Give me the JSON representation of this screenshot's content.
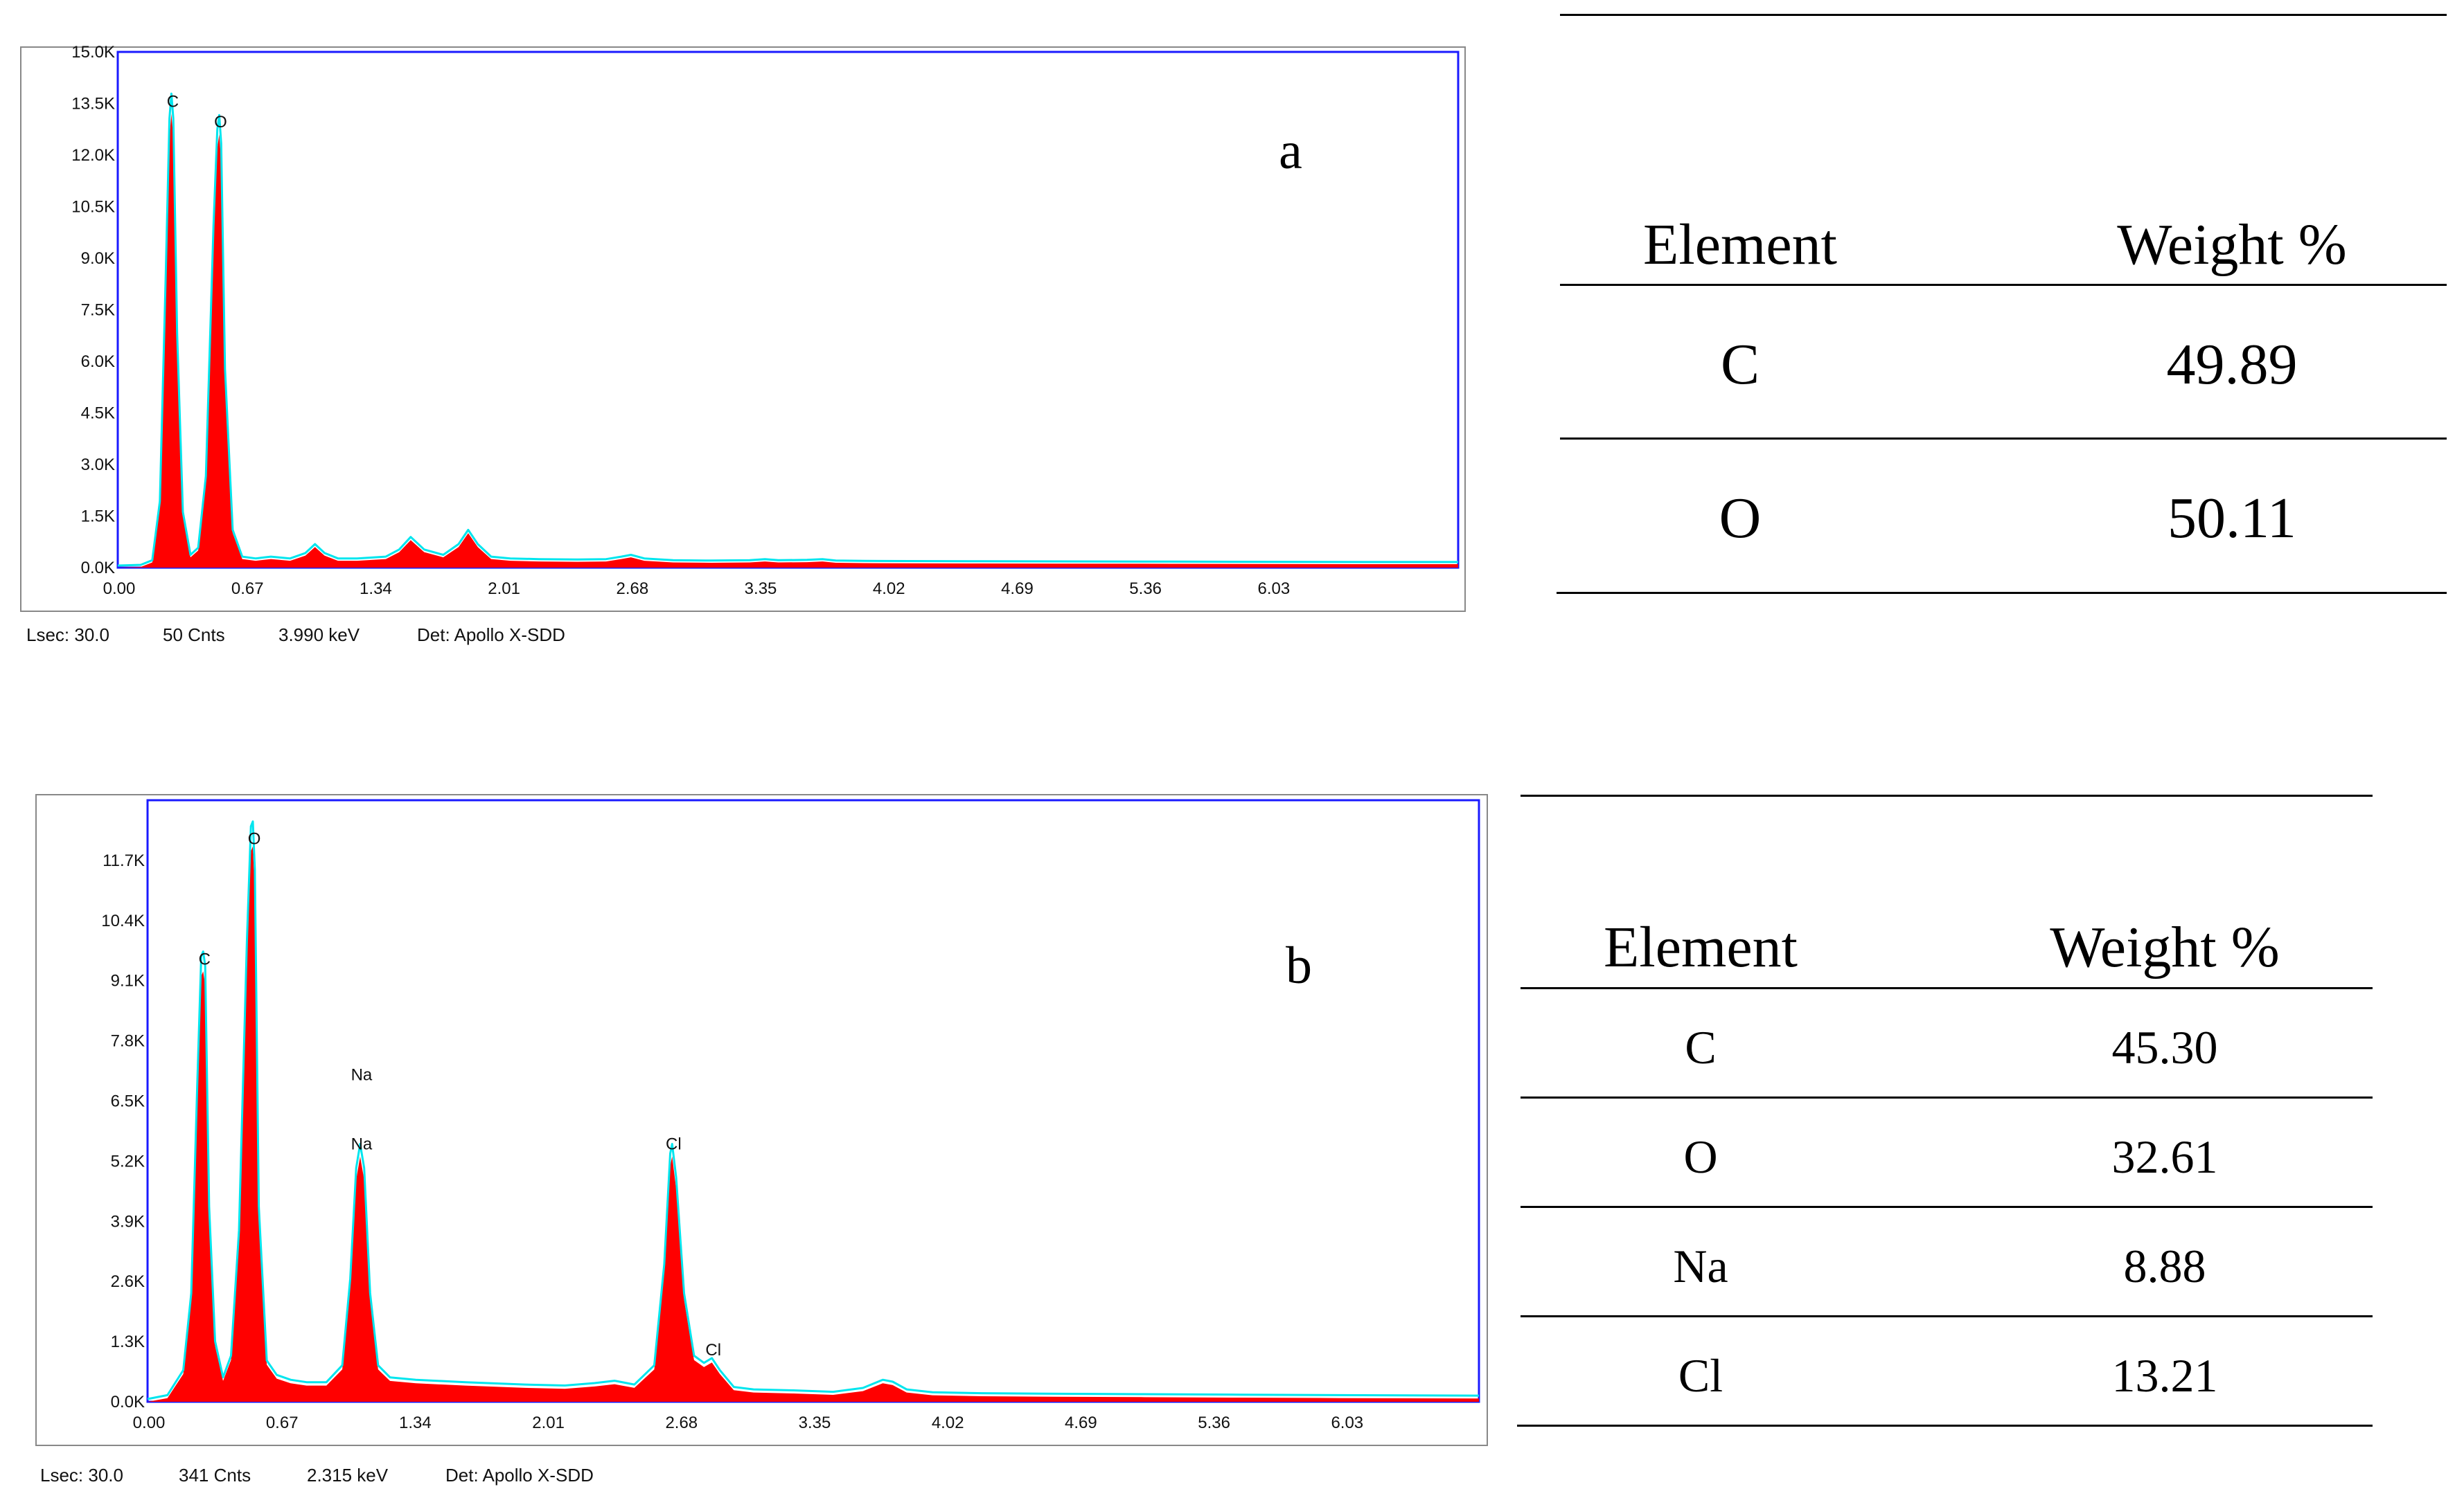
{
  "chart_data": [
    {
      "type": "line",
      "panel_label": "a",
      "title": "",
      "xlabel": "",
      "ylabel": "",
      "xlim": [
        0,
        7.0
      ],
      "ylim": [
        0,
        15000
      ],
      "x_ticks": [
        "0.00",
        "0.67",
        "1.34",
        "2.01",
        "2.68",
        "3.35",
        "4.02",
        "4.69",
        "5.36",
        "6.03"
      ],
      "y_ticks": [
        "0.0K",
        "1.5K",
        "3.0K",
        "4.5K",
        "6.0K",
        "7.5K",
        "9.0K",
        "10.5K",
        "12.0K",
        "13.5K",
        "15.0K"
      ],
      "peak_labels": [
        {
          "label": "C",
          "x": 0.28,
          "y": 13200
        },
        {
          "label": "O",
          "x": 0.53,
          "y": 12600
        }
      ],
      "series": [
        {
          "x": [
            0.0,
            0.12,
            0.18,
            0.22,
            0.25,
            0.27,
            0.28,
            0.29,
            0.31,
            0.34,
            0.38,
            0.42,
            0.46,
            0.5,
            0.52,
            0.53,
            0.54,
            0.56,
            0.6,
            0.65,
            0.72,
            0.8,
            0.9,
            0.98,
            1.03,
            1.08,
            1.15,
            1.25,
            1.4,
            1.47,
            1.53,
            1.6,
            1.7,
            1.78,
            1.83,
            1.88,
            1.95,
            2.05,
            2.2,
            2.4,
            2.55,
            2.63,
            2.68,
            2.75,
            2.9,
            3.1,
            3.3,
            3.38,
            3.45,
            3.6,
            3.68,
            3.75,
            3.9,
            4.5,
            5.5,
            6.5,
            7.0
          ],
          "y": [
            0,
            20,
            150,
            1800,
            8000,
            12500,
            13200,
            12500,
            6500,
            1500,
            300,
            500,
            2500,
            9500,
            12200,
            12600,
            11800,
            5500,
            1000,
            250,
            200,
            250,
            200,
            350,
            600,
            350,
            200,
            200,
            250,
            450,
            800,
            450,
            300,
            600,
            1000,
            600,
            250,
            200,
            180,
            170,
            180,
            250,
            300,
            200,
            150,
            140,
            150,
            180,
            150,
            160,
            180,
            140,
            130,
            120,
            110,
            100,
            100
          ]
        }
      ],
      "footer": {
        "lsec": "Lsec: 30.0",
        "cnts": "50 Cnts",
        "kev": "3.990 keV",
        "det": "Det: Apollo X-SDD"
      }
    },
    {
      "type": "line",
      "panel_label": "b",
      "title": "",
      "xlabel": "",
      "ylabel": "",
      "xlim": [
        0,
        6.7
      ],
      "ylim": [
        0,
        13000
      ],
      "x_ticks": [
        "0.00",
        "0.67",
        "1.34",
        "2.01",
        "2.68",
        "3.35",
        "4.02",
        "4.69",
        "5.36",
        "6.03"
      ],
      "y_ticks": [
        "0.0K",
        "1.3K",
        "2.6K",
        "3.9K",
        "5.2K",
        "6.5K",
        "7.8K",
        "9.1K",
        "10.4K",
        "11.7K"
      ],
      "peak_labels": [
        {
          "label": "C",
          "x": 0.28,
          "y": 9300
        },
        {
          "label": "O",
          "x": 0.53,
          "y": 11900
        },
        {
          "label": "Na",
          "x": 1.07,
          "y": 6800
        },
        {
          "label": "Na",
          "x": 1.07,
          "y": 5300
        },
        {
          "label": "Cl",
          "x": 2.64,
          "y": 5300
        },
        {
          "label": "Cl",
          "x": 2.84,
          "y": 850
        }
      ],
      "series": [
        {
          "x": [
            0.0,
            0.1,
            0.18,
            0.22,
            0.25,
            0.27,
            0.28,
            0.29,
            0.31,
            0.34,
            0.38,
            0.42,
            0.46,
            0.5,
            0.52,
            0.53,
            0.54,
            0.56,
            0.6,
            0.65,
            0.72,
            0.8,
            0.9,
            0.98,
            1.02,
            1.05,
            1.07,
            1.09,
            1.12,
            1.16,
            1.22,
            1.35,
            1.6,
            1.9,
            2.1,
            2.25,
            2.35,
            2.45,
            2.55,
            2.6,
            2.63,
            2.64,
            2.66,
            2.7,
            2.75,
            2.8,
            2.84,
            2.88,
            2.95,
            3.05,
            3.25,
            3.45,
            3.6,
            3.7,
            3.75,
            3.82,
            3.95,
            4.2,
            4.5,
            5.0,
            5.5,
            6.0,
            6.7
          ],
          "y": [
            0,
            80,
            600,
            2200,
            6500,
            9200,
            9300,
            9000,
            4000,
            1200,
            450,
            900,
            3500,
            9500,
            11900,
            12000,
            11000,
            4000,
            800,
            500,
            400,
            350,
            350,
            700,
            2500,
            4800,
            5300,
            4800,
            2200,
            700,
            450,
            400,
            350,
            300,
            280,
            330,
            380,
            300,
            700,
            2800,
            5100,
            5300,
            4600,
            2200,
            900,
            750,
            850,
            600,
            250,
            200,
            180,
            150,
            230,
            400,
            360,
            200,
            140,
            120,
            110,
            100,
            90,
            80,
            70
          ]
        }
      ],
      "footer": {
        "lsec": "Lsec: 30.0",
        "cnts": "341 Cnts",
        "kev": "2.315 keV",
        "det": "Det: Apollo X-SDD"
      }
    }
  ],
  "tables": [
    {
      "header": {
        "element": "Element",
        "weight": "Weight %"
      },
      "rows": [
        {
          "element": "C",
          "weight": "49.89"
        },
        {
          "element": "O",
          "weight": "50.11"
        }
      ]
    },
    {
      "header": {
        "element": "Element",
        "weight": "Weight %"
      },
      "rows": [
        {
          "element": "C",
          "weight": "45.30"
        },
        {
          "element": "O",
          "weight": "32.61"
        },
        {
          "element": "Na",
          "weight": "8.88"
        },
        {
          "element": "Cl",
          "weight": "13.21"
        }
      ]
    }
  ],
  "colors": {
    "fill": "#ff0000",
    "outline": "#00e5ee",
    "frame": "#1a1aff",
    "border": "#888888"
  }
}
